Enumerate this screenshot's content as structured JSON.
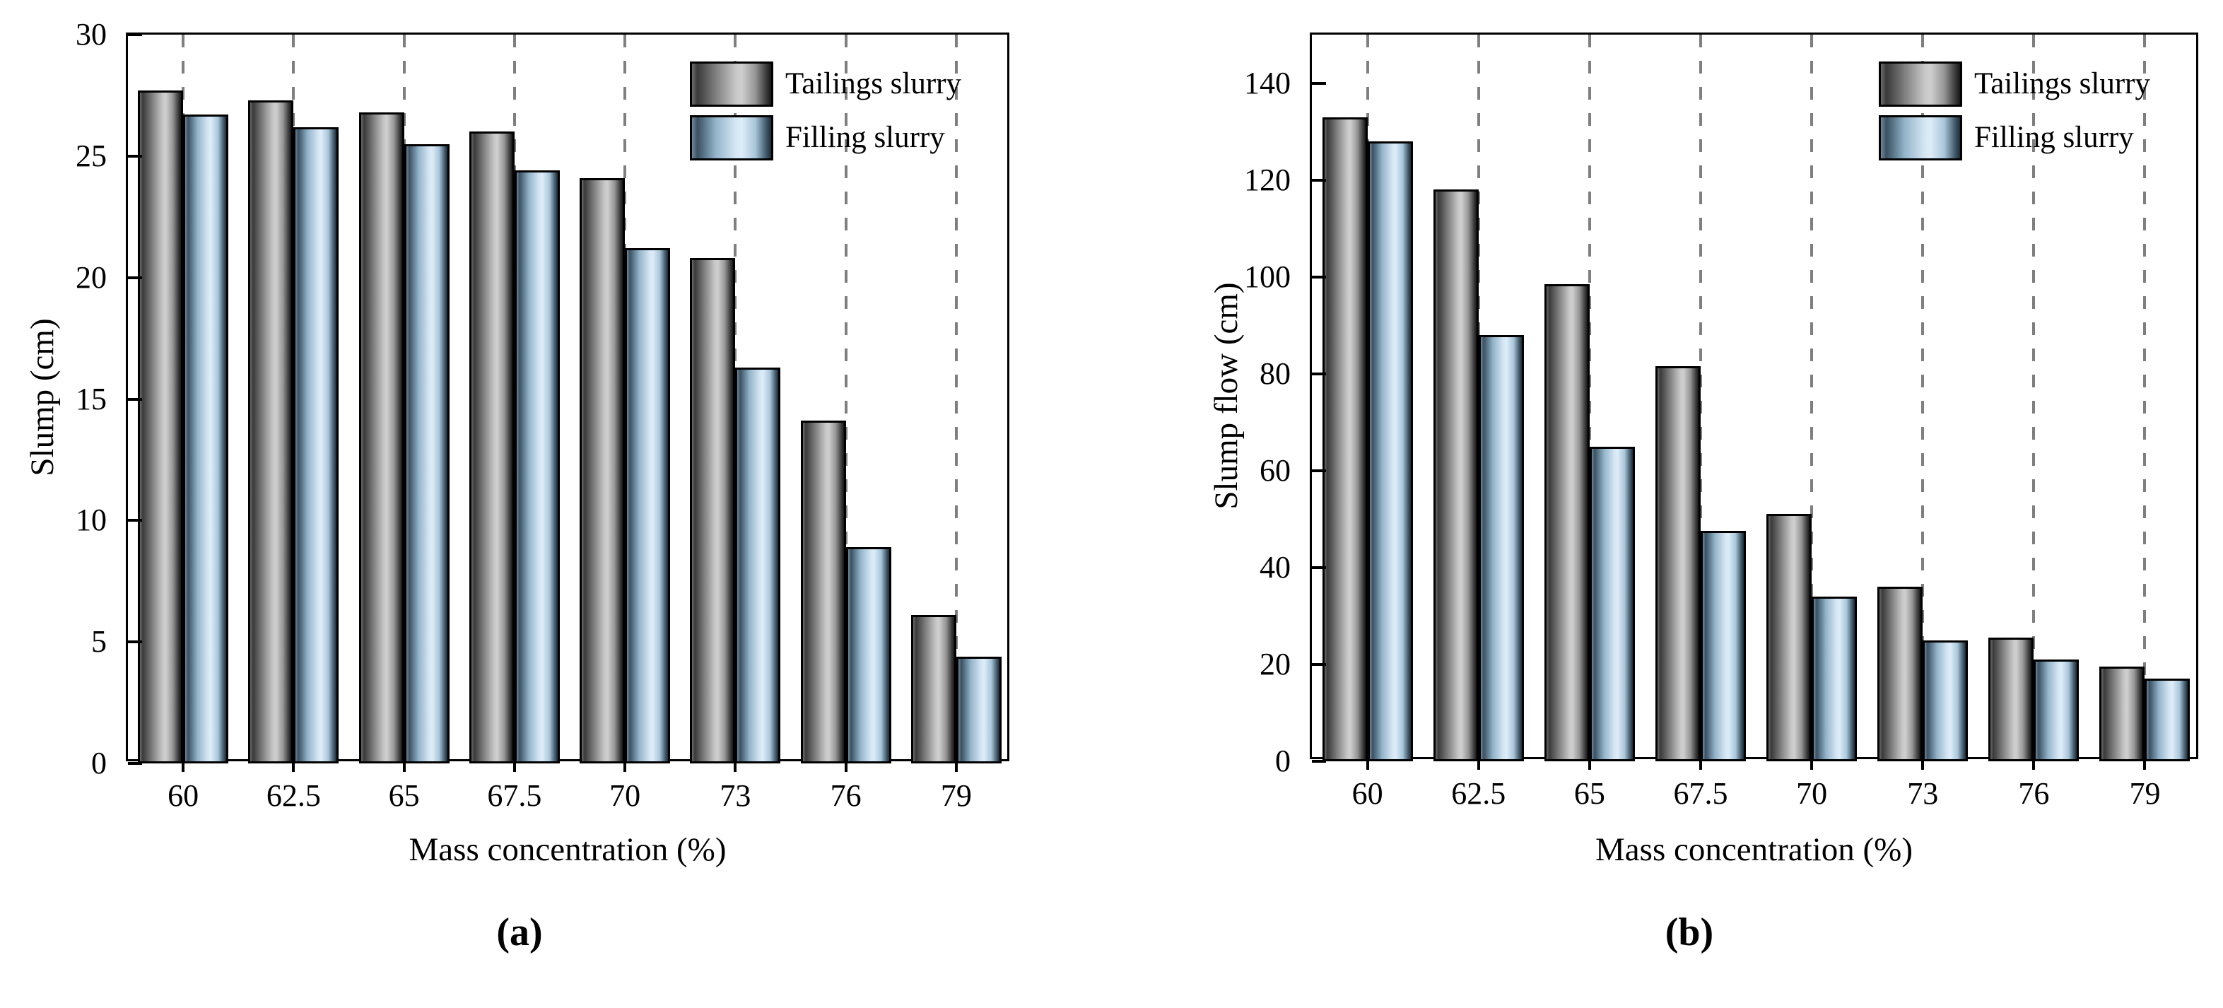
{
  "colors": {
    "background": "#ffffff",
    "frame": "#000000",
    "gridline": "#7f7f7f",
    "text": "#000000",
    "bar_outline": "#000000",
    "tailings_highlight": "#c9c9c9",
    "tailings_shadow": "#161616",
    "filling_highlight": "#d7e8f5",
    "filling_shadow": "#1d2b36"
  },
  "chart_data": [
    {
      "type": "bar",
      "panel": "a",
      "caption": "(a)",
      "xlabel": "Mass concentration (%)",
      "ylabel": "Slump (cm)",
      "categories": [
        "60",
        "62.5",
        "65",
        "67.5",
        "70",
        "73",
        "76",
        "79"
      ],
      "series": [
        {
          "name": "Tailings slurry",
          "values": [
            27.7,
            27.3,
            26.8,
            26.0,
            24.1,
            20.8,
            14.1,
            6.1
          ]
        },
        {
          "name": "Filling slurry",
          "values": [
            26.7,
            26.2,
            25.5,
            24.4,
            21.2,
            16.3,
            8.9,
            4.4
          ]
        }
      ],
      "ylim": [
        0,
        30
      ],
      "yticks": [
        0,
        5,
        10,
        15,
        20,
        25,
        30
      ],
      "grid": "vertical-dashed",
      "legend_position": "top-right"
    },
    {
      "type": "bar",
      "panel": "b",
      "caption": "(b)",
      "xlabel": "Mass concentration (%)",
      "ylabel": "Slump flow (cm)",
      "categories": [
        "60",
        "62.5",
        "65",
        "67.5",
        "70",
        "73",
        "76",
        "79"
      ],
      "series": [
        {
          "name": "Tailings slurry",
          "values": [
            133,
            118,
            98.5,
            81.5,
            51,
            36,
            25.5,
            19.5
          ]
        },
        {
          "name": "Filling slurry",
          "values": [
            128,
            88,
            65,
            47.5,
            34,
            25,
            21,
            17
          ]
        }
      ],
      "ylim": [
        0,
        150
      ],
      "yticks": [
        0,
        20,
        40,
        60,
        80,
        100,
        120,
        140
      ],
      "grid": "vertical-dashed",
      "legend_position": "top-right"
    }
  ]
}
